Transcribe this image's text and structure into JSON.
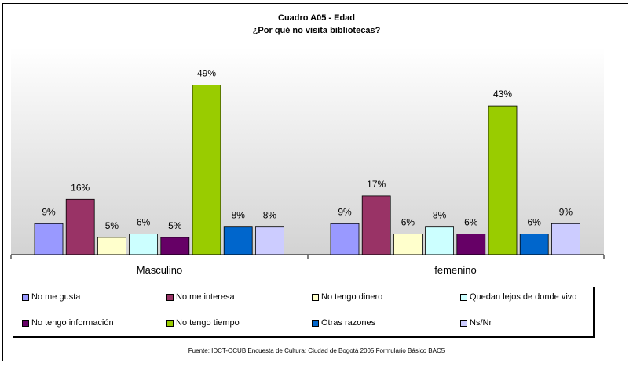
{
  "chart_data": {
    "type": "bar",
    "title": "Cuadro A05 - Edad",
    "subtitle": "¿Por qué no visita bibliotecas?",
    "categories": [
      "Masculino",
      "femenino"
    ],
    "series": [
      {
        "name": "No me gusta",
        "values": [
          9,
          9
        ],
        "labels": [
          "9%",
          "9%"
        ],
        "color": "#9999FF"
      },
      {
        "name": "No me interesa",
        "values": [
          16,
          17
        ],
        "labels": [
          "16%",
          "17%"
        ],
        "color": "#993366"
      },
      {
        "name": "No tengo dinero",
        "values": [
          5,
          6
        ],
        "labels": [
          "5%",
          "6%"
        ],
        "color": "#FFFFCC"
      },
      {
        "name": "Quedan lejos de donde vivo",
        "values": [
          6,
          8
        ],
        "labels": [
          "6%",
          "8%"
        ],
        "color": "#CCFFFF"
      },
      {
        "name": "No tengo información",
        "values": [
          5,
          6
        ],
        "labels": [
          "5%",
          "6%"
        ],
        "color": "#660066"
      },
      {
        "name": "No tengo tiempo",
        "values": [
          49,
          43
        ],
        "labels": [
          "49%",
          "43%"
        ],
        "color": "#99CC00"
      },
      {
        "name": "Otras razones",
        "values": [
          8,
          6
        ],
        "labels": [
          "8%",
          "6%"
        ],
        "color": "#0066CC"
      },
      {
        "name": "Ns/Nr",
        "values": [
          8,
          9
        ],
        "labels": [
          "8%",
          "9%"
        ],
        "color": "#CCCCFF"
      }
    ],
    "ylim": [
      0,
      60
    ],
    "grid": false,
    "legend": "bottom",
    "source": "Fuente: IDCT-OCUB Encuesta de Cultura: Ciudad de Bogotá 2005 Formulario Básico BAC5"
  }
}
